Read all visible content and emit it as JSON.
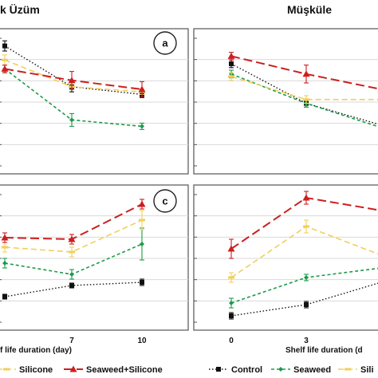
{
  "header": {
    "left_title": "k Üzüm",
    "right_title": "Müşküle"
  },
  "x_labels": {
    "left": "f life duration (day)",
    "right": "Shelf life duration (d"
  },
  "legends": {
    "left": [
      "Silicone",
      "Seaweed+Silicone"
    ],
    "right": [
      "Control",
      "Seaweed",
      "Sili"
    ]
  },
  "colors": {
    "control": "#111111",
    "seaweed": "#1e9a4a",
    "silicone": "#f2cf5a",
    "seaweed_silicone": "#cc1f1f",
    "grid": "#d9d9d9",
    "frame": "#555555"
  },
  "chart_data": [
    {
      "type": "line",
      "panel": "a",
      "x": [
        0,
        7,
        10
      ],
      "tick_labels_x": [],
      "series": [
        {
          "key": "control",
          "values": [
            9.4,
            6.2,
            5.6
          ],
          "errors": [
            0.4,
            0.4,
            0.25
          ]
        },
        {
          "key": "seaweed",
          "values": [
            7.6,
            3.6,
            3.1
          ],
          "errors": [
            0.3,
            0.5,
            0.25
          ]
        },
        {
          "key": "silicone",
          "values": [
            8.3,
            6.2,
            5.8
          ],
          "errors": [
            0.4,
            0.2,
            0.2
          ]
        },
        {
          "key": "seaweed_silicone",
          "values": [
            7.6,
            6.7,
            6.0
          ],
          "errors": [
            0.3,
            0.7,
            0.6
          ]
        }
      ]
    },
    {
      "type": "line",
      "panel": "",
      "x": [
        0,
        3,
        7
      ],
      "tick_labels_x": [],
      "series": [
        {
          "key": "control",
          "values": [
            8.0,
            4.9,
            3.2
          ],
          "errors": [
            0.3,
            0.3,
            0.3
          ]
        },
        {
          "key": "seaweed",
          "values": [
            7.2,
            4.9,
            3.0
          ],
          "errors": [
            0.3,
            0.3,
            0.3
          ]
        },
        {
          "key": "silicone",
          "values": [
            7.0,
            5.2,
            5.2
          ],
          "errors": [
            0.3,
            0.3,
            0.3
          ]
        },
        {
          "key": "seaweed_silicone",
          "values": [
            8.6,
            7.2,
            6.0
          ],
          "errors": [
            0.3,
            0.7,
            0.5
          ]
        }
      ]
    },
    {
      "type": "line",
      "panel": "c",
      "x": [
        0,
        7,
        10
      ],
      "tick_labels_x": [
        "",
        "7",
        "10"
      ],
      "series": [
        {
          "key": "control",
          "values": [
            1.6,
            2.3,
            2.5
          ],
          "errors": [
            0.15,
            0.15,
            0.2
          ]
        },
        {
          "key": "seaweed",
          "values": [
            3.7,
            3.0,
            4.9
          ],
          "errors": [
            0.3,
            0.3,
            1.0
          ]
        },
        {
          "key": "silicone",
          "values": [
            4.7,
            4.4,
            6.4
          ],
          "errors": [
            0.3,
            0.3,
            0.6
          ]
        },
        {
          "key": "seaweed_silicone",
          "values": [
            5.3,
            5.2,
            7.4
          ],
          "errors": [
            0.3,
            0.3,
            0.3
          ]
        }
      ]
    },
    {
      "type": "line",
      "panel": "",
      "x": [
        0,
        3,
        7
      ],
      "tick_labels_x": [
        "0",
        "3",
        ""
      ],
      "series": [
        {
          "key": "control",
          "values": [
            0.4,
            1.1,
            2.5
          ],
          "errors": [
            0.2,
            0.2,
            0.2
          ]
        },
        {
          "key": "seaweed",
          "values": [
            1.2,
            2.8,
            3.4
          ],
          "errors": [
            0.3,
            0.2,
            0.3
          ]
        },
        {
          "key": "silicone",
          "values": [
            2.8,
            6.0,
            4.2
          ],
          "errors": [
            0.3,
            0.4,
            0.4
          ]
        },
        {
          "key": "seaweed_silicone",
          "values": [
            4.6,
            7.8,
            7.0
          ],
          "errors": [
            0.6,
            0.4,
            0.4
          ]
        }
      ]
    }
  ]
}
